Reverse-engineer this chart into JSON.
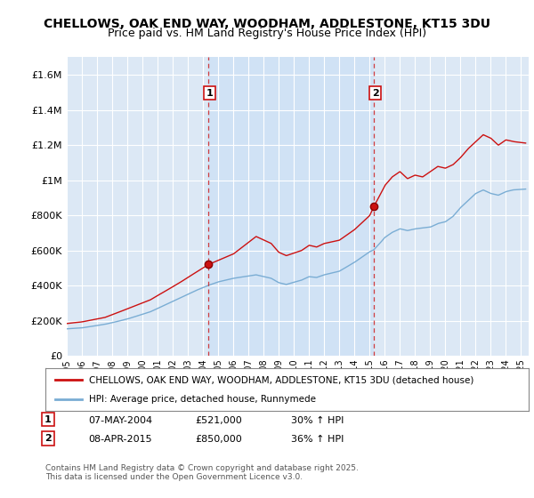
{
  "title": "CHELLOWS, OAK END WAY, WOODHAM, ADDLESTONE, KT15 3DU",
  "subtitle": "Price paid vs. HM Land Registry's House Price Index (HPI)",
  "title_fontsize": 10,
  "subtitle_fontsize": 9,
  "ylim": [
    0,
    1700000
  ],
  "yticks": [
    0,
    200000,
    400000,
    600000,
    800000,
    1000000,
    1200000,
    1400000,
    1600000
  ],
  "ytick_labels": [
    "£0",
    "£200K",
    "£400K",
    "£600K",
    "£800K",
    "£1M",
    "£1.2M",
    "£1.4M",
    "£1.6M"
  ],
  "bg_color": "#dce8f5",
  "highlight_color": "#cce0f5",
  "red_color": "#cc1111",
  "blue_color": "#7aadd4",
  "marker1_x": 2004.35,
  "marker1_y": 521000,
  "marker2_x": 2015.27,
  "marker2_y": 850000,
  "legend_line1": "CHELLOWS, OAK END WAY, WOODHAM, ADDLESTONE, KT15 3DU (detached house)",
  "legend_line2": "HPI: Average price, detached house, Runnymede",
  "marker1_date": "07-MAY-2004",
  "marker1_price": "£521,000",
  "marker1_hpi": "30% ↑ HPI",
  "marker2_date": "08-APR-2015",
  "marker2_price": "£850,000",
  "marker2_hpi": "36% ↑ HPI",
  "footer": "Contains HM Land Registry data © Crown copyright and database right 2025.\nThis data is licensed under the Open Government Licence v3.0.",
  "xmin": 1995,
  "xmax": 2025.5
}
